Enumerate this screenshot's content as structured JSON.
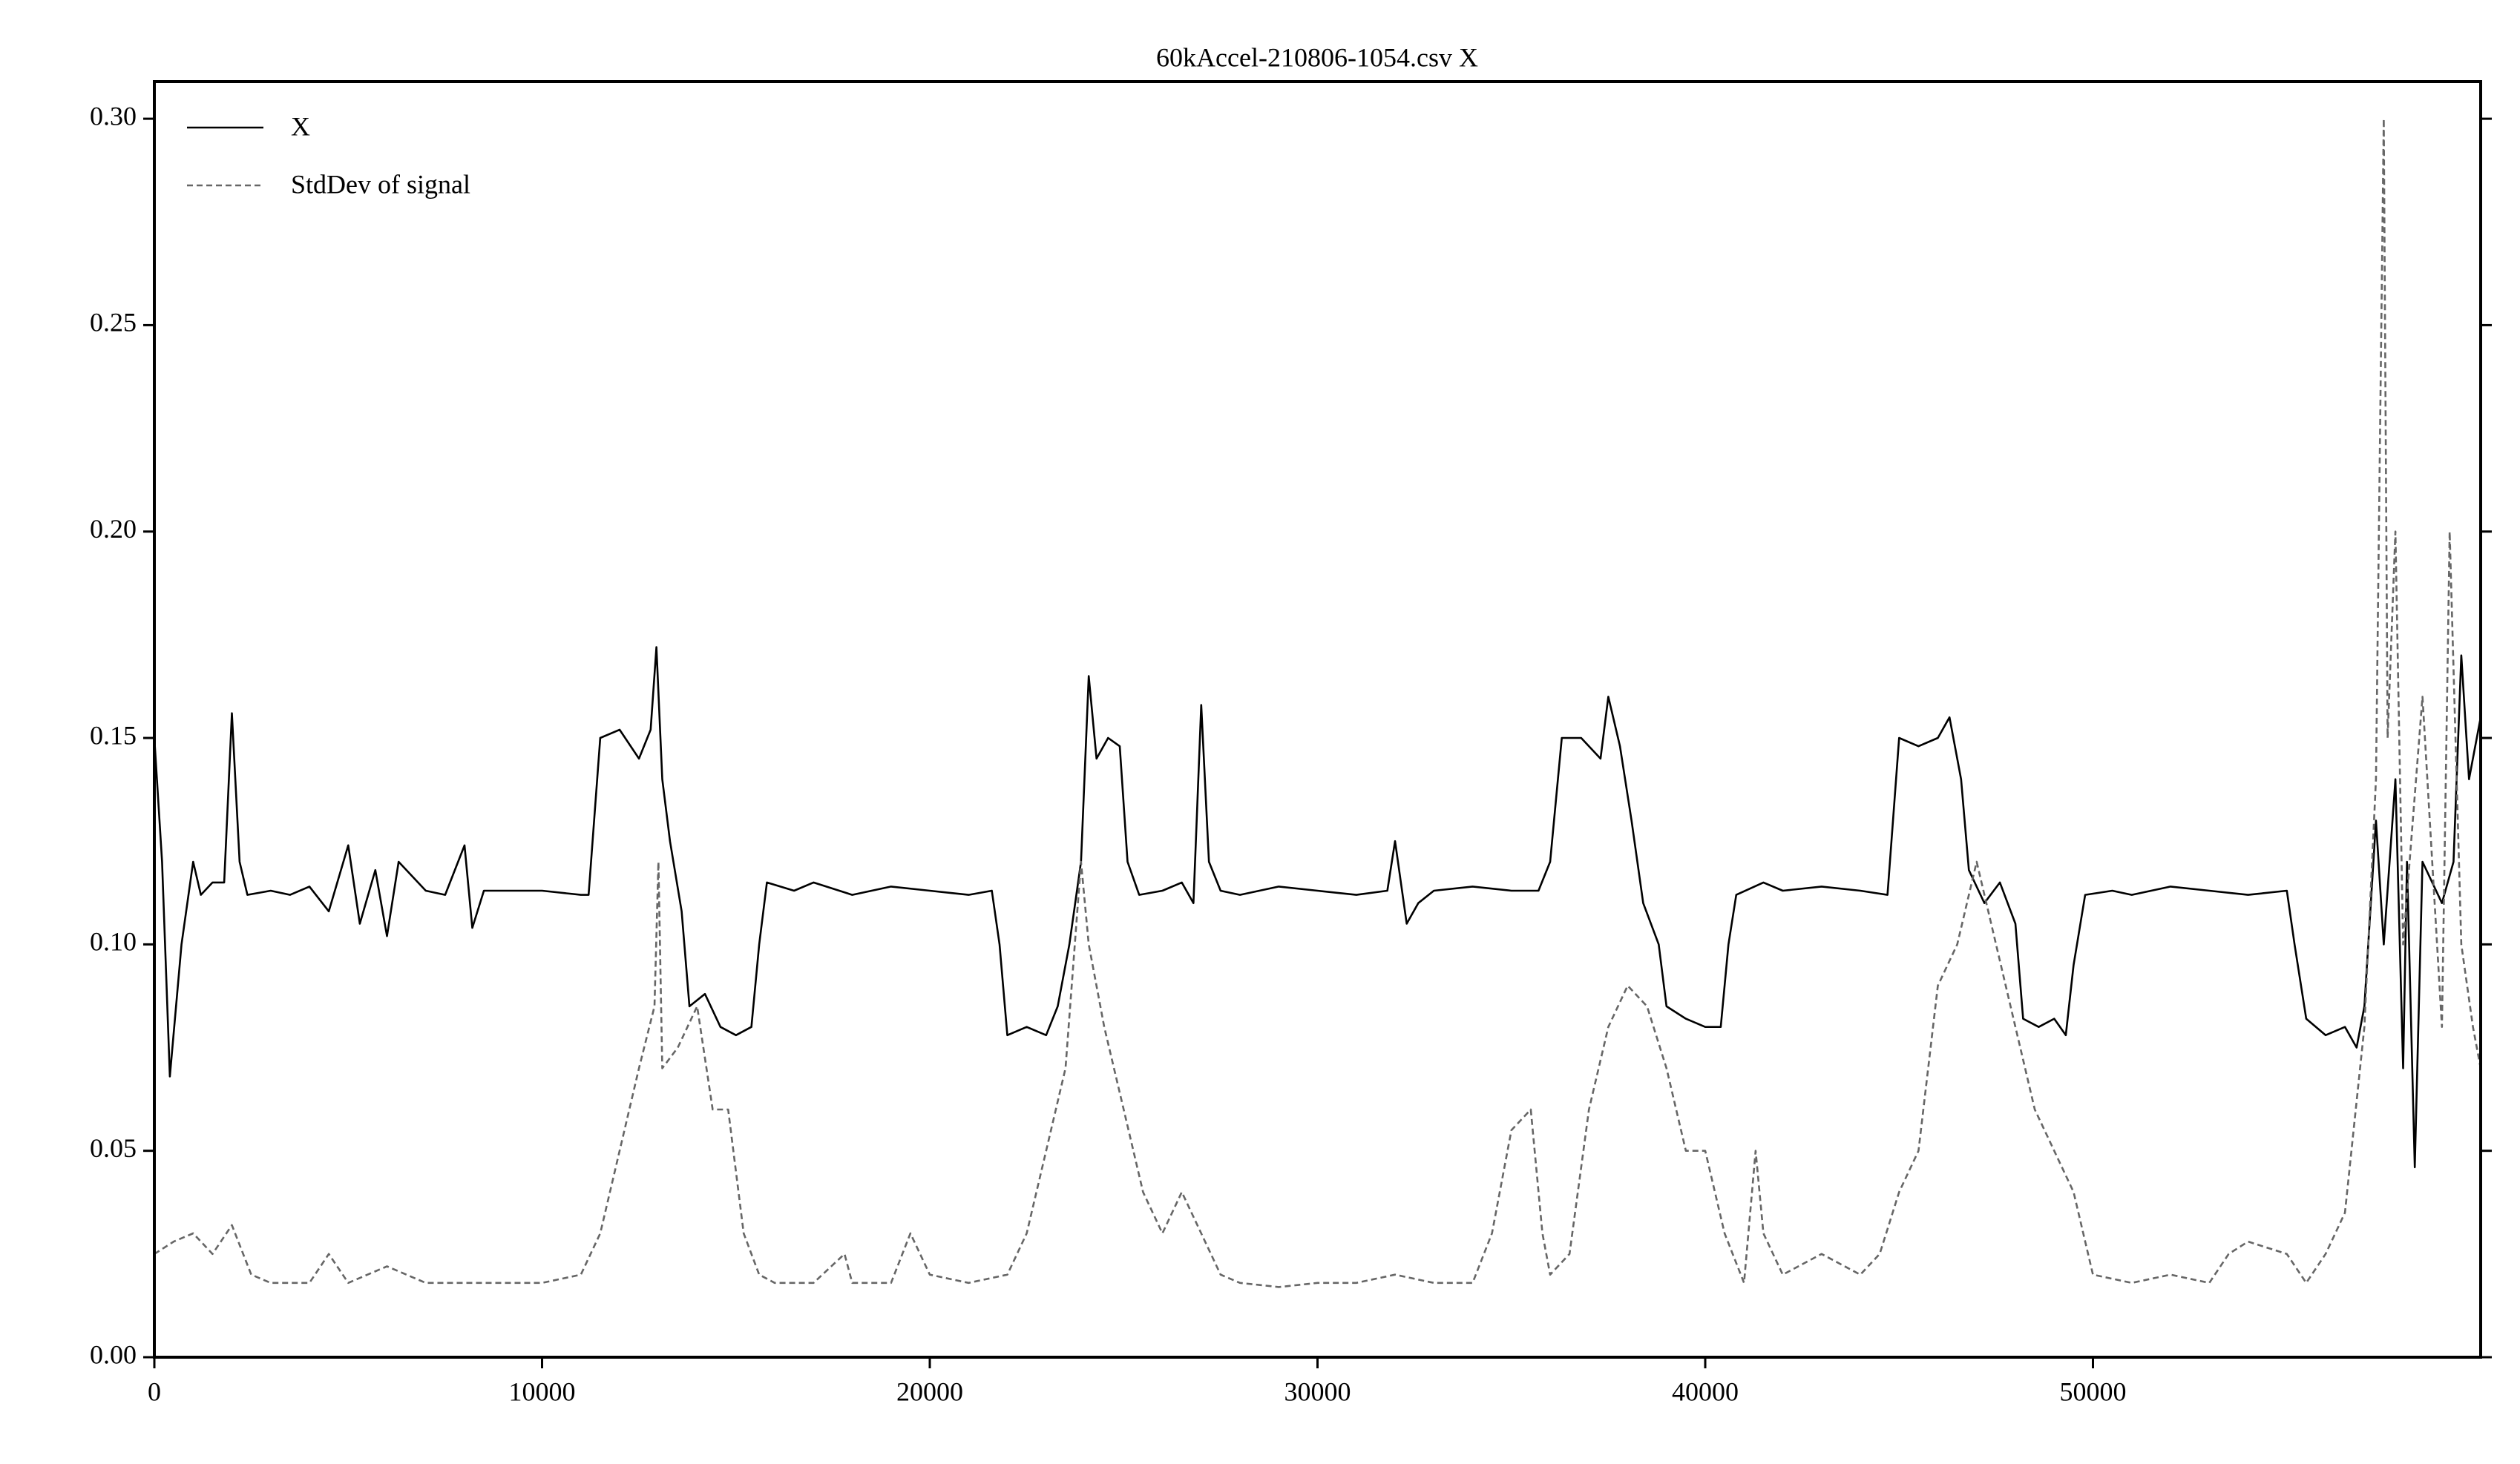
{
  "chart_data": {
    "type": "line",
    "title": "60kAccel-210806-1054.csv X",
    "xlim": [
      0,
      60000
    ],
    "ylim": [
      0,
      0.309
    ],
    "xticks": [
      0,
      10000,
      20000,
      30000,
      40000,
      50000
    ],
    "yticks": [
      {
        "value": 0,
        "label": "0.00"
      },
      {
        "value": 0.05,
        "label": "0.05"
      },
      {
        "value": 0.1,
        "label": "0.10"
      },
      {
        "value": 0.15,
        "label": "0.15"
      },
      {
        "value": 0.2,
        "label": "0.20"
      },
      {
        "value": 0.25,
        "label": "0.25"
      },
      {
        "value": 0.3,
        "label": "0.30"
      }
    ],
    "legend": "upper left",
    "series": [
      {
        "name": "X",
        "color": "#000000",
        "linestyle": "solid",
        "x": [
          0,
          200,
          400,
          700,
          1000,
          1200,
          1500,
          1800,
          2000,
          2200,
          2400,
          3000,
          3500,
          4000,
          4500,
          5000,
          5300,
          5700,
          6000,
          6300,
          7000,
          7500,
          8000,
          8200,
          8500,
          9000,
          10000,
          11000,
          11200,
          11500,
          12000,
          12500,
          12800,
          12950,
          13100,
          13300,
          13600,
          13800,
          14200,
          14600,
          15000,
          15400,
          15600,
          15800,
          16500,
          17000,
          18000,
          19000,
          20000,
          21000,
          21600,
          21800,
          22000,
          22500,
          23000,
          23300,
          23600,
          23900,
          24100,
          24300,
          24600,
          24900,
          25100,
          25400,
          26000,
          26500,
          26800,
          27000,
          27200,
          27500,
          28000,
          29000,
          30000,
          31000,
          31800,
          32000,
          32300,
          32600,
          33000,
          34000,
          35000,
          35700,
          36000,
          36300,
          36800,
          37300,
          37500,
          37800,
          38100,
          38400,
          38800,
          39000,
          39500,
          40000,
          40400,
          40600,
          40800,
          41500,
          42000,
          43000,
          44000,
          44700,
          45000,
          45500,
          46000,
          46300,
          46600,
          46800,
          47200,
          47600,
          48000,
          48200,
          48600,
          49000,
          49300,
          49500,
          49800,
          50500,
          51000,
          52000,
          53000,
          54000,
          55000,
          55200,
          55500,
          56000,
          56500,
          56800,
          57000,
          57300,
          57500,
          57800,
          58000,
          58100,
          58300,
          58500,
          59000,
          59300,
          59500,
          59700,
          60000
        ],
        "values": [
          0.15,
          0.12,
          0.068,
          0.1,
          0.12,
          0.112,
          0.115,
          0.115,
          0.156,
          0.12,
          0.112,
          0.113,
          0.112,
          0.114,
          0.108,
          0.124,
          0.105,
          0.118,
          0.102,
          0.12,
          0.113,
          0.112,
          0.124,
          0.104,
          0.113,
          0.113,
          0.113,
          0.112,
          0.112,
          0.15,
          0.152,
          0.145,
          0.152,
          0.172,
          0.14,
          0.125,
          0.108,
          0.085,
          0.088,
          0.08,
          0.078,
          0.08,
          0.1,
          0.115,
          0.113,
          0.115,
          0.112,
          0.114,
          0.113,
          0.112,
          0.113,
          0.1,
          0.078,
          0.08,
          0.078,
          0.085,
          0.1,
          0.12,
          0.165,
          0.145,
          0.15,
          0.148,
          0.12,
          0.112,
          0.113,
          0.115,
          0.11,
          0.158,
          0.12,
          0.113,
          0.112,
          0.114,
          0.113,
          0.112,
          0.113,
          0.125,
          0.105,
          0.11,
          0.113,
          0.114,
          0.113,
          0.113,
          0.12,
          0.15,
          0.15,
          0.145,
          0.16,
          0.148,
          0.13,
          0.11,
          0.1,
          0.085,
          0.082,
          0.08,
          0.08,
          0.1,
          0.112,
          0.115,
          0.113,
          0.114,
          0.113,
          0.112,
          0.15,
          0.148,
          0.15,
          0.155,
          0.14,
          0.118,
          0.11,
          0.115,
          0.105,
          0.082,
          0.08,
          0.082,
          0.078,
          0.095,
          0.112,
          0.113,
          0.112,
          0.114,
          0.113,
          0.112,
          0.113,
          0.1,
          0.082,
          0.078,
          0.08,
          0.075,
          0.085,
          0.13,
          0.1,
          0.14,
          0.07,
          0.12,
          0.046,
          0.12,
          0.11,
          0.12,
          0.17,
          0.14,
          0.155
        ]
      },
      {
        "name": "StdDev of signal",
        "color": "#666666",
        "linestyle": "dashed",
        "x": [
          0,
          500,
          1000,
          1500,
          2000,
          2500,
          3000,
          4000,
          4500,
          5000,
          6000,
          7000,
          8000,
          9000,
          10000,
          11000,
          11500,
          12000,
          12500,
          12900,
          13000,
          13100,
          13500,
          14000,
          14400,
          14800,
          15200,
          15600,
          16000,
          17000,
          17800,
          18000,
          19000,
          19500,
          20000,
          21000,
          22000,
          22500,
          23000,
          23500,
          23900,
          24100,
          24500,
          25000,
          25500,
          26000,
          26500,
          27000,
          27500,
          28000,
          29000,
          30000,
          31000,
          32000,
          33000,
          34000,
          34500,
          35000,
          35500,
          35800,
          36000,
          36500,
          37000,
          37500,
          38000,
          38500,
          39000,
          39500,
          40000,
          40500,
          41000,
          41300,
          41500,
          42000,
          43000,
          44000,
          44500,
          45000,
          45500,
          46000,
          46500,
          47000,
          47500,
          48000,
          48500,
          49000,
          49500,
          50000,
          51000,
          52000,
          53000,
          53500,
          54000,
          55000,
          55500,
          56000,
          56500,
          57000,
          57300,
          57500,
          57600,
          57800,
          58000,
          58500,
          59000,
          59200,
          59500,
          59800,
          60000
        ],
        "values": [
          0.025,
          0.028,
          0.03,
          0.025,
          0.032,
          0.02,
          0.018,
          0.018,
          0.025,
          0.018,
          0.022,
          0.018,
          0.018,
          0.018,
          0.018,
          0.02,
          0.03,
          0.05,
          0.07,
          0.085,
          0.12,
          0.07,
          0.075,
          0.085,
          0.06,
          0.06,
          0.03,
          0.02,
          0.018,
          0.018,
          0.025,
          0.018,
          0.018,
          0.03,
          0.02,
          0.018,
          0.02,
          0.03,
          0.05,
          0.07,
          0.12,
          0.1,
          0.08,
          0.06,
          0.04,
          0.03,
          0.04,
          0.03,
          0.02,
          0.018,
          0.017,
          0.018,
          0.018,
          0.02,
          0.018,
          0.018,
          0.03,
          0.055,
          0.06,
          0.03,
          0.02,
          0.025,
          0.06,
          0.08,
          0.09,
          0.085,
          0.07,
          0.05,
          0.05,
          0.03,
          0.018,
          0.05,
          0.03,
          0.02,
          0.025,
          0.02,
          0.025,
          0.04,
          0.05,
          0.09,
          0.1,
          0.12,
          0.1,
          0.08,
          0.06,
          0.05,
          0.04,
          0.02,
          0.018,
          0.02,
          0.018,
          0.025,
          0.028,
          0.025,
          0.018,
          0.025,
          0.035,
          0.08,
          0.14,
          0.3,
          0.15,
          0.2,
          0.1,
          0.16,
          0.08,
          0.2,
          0.1,
          0.08,
          0.07
        ]
      }
    ]
  }
}
